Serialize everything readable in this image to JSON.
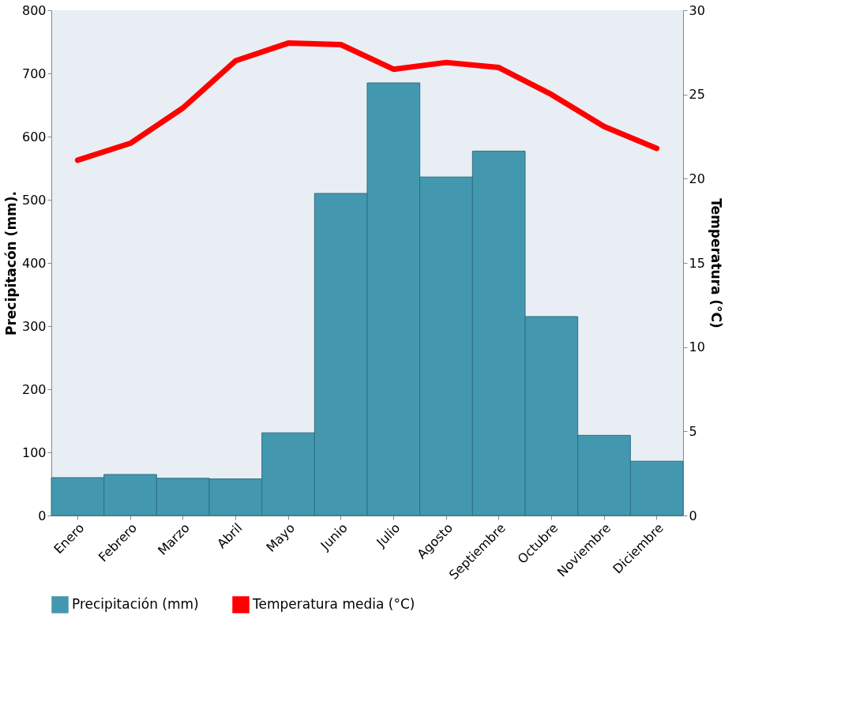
{
  "chart_data": {
    "type": "bar",
    "categories": [
      "Enero",
      "Febrero",
      "Marzo",
      "Abril",
      "Mayo",
      "Junio",
      "Julio",
      "Agosto",
      "Septiembre",
      "Octubre",
      "Noviembre",
      "Diciembre"
    ],
    "ylabel": "Precipitacón (mm).",
    "y2label": "Temperatura (°C)",
    "ylim": [
      0,
      800
    ],
    "yticks": [
      0,
      100,
      200,
      300,
      400,
      500,
      600,
      700,
      800
    ],
    "y2lim": [
      0,
      30
    ],
    "y2ticks": [
      0,
      5,
      10,
      15,
      20,
      25,
      30
    ],
    "series": [
      {
        "name": "Precipitación (mm)",
        "color": "#4398b0",
        "values": [
          60,
          65,
          59,
          58,
          131,
          510,
          685,
          536,
          577,
          315,
          127,
          86
        ]
      },
      {
        "name": "Temperatura media (°C)",
        "type": "line",
        "axis": "y2",
        "color": "#ff0000",
        "values": [
          21.1,
          22.1,
          24.2,
          27.0,
          28.05,
          27.96,
          26.5,
          26.9,
          26.6,
          25.0,
          23.1,
          21.8
        ]
      }
    ],
    "legend": "bottom",
    "grid": false
  }
}
